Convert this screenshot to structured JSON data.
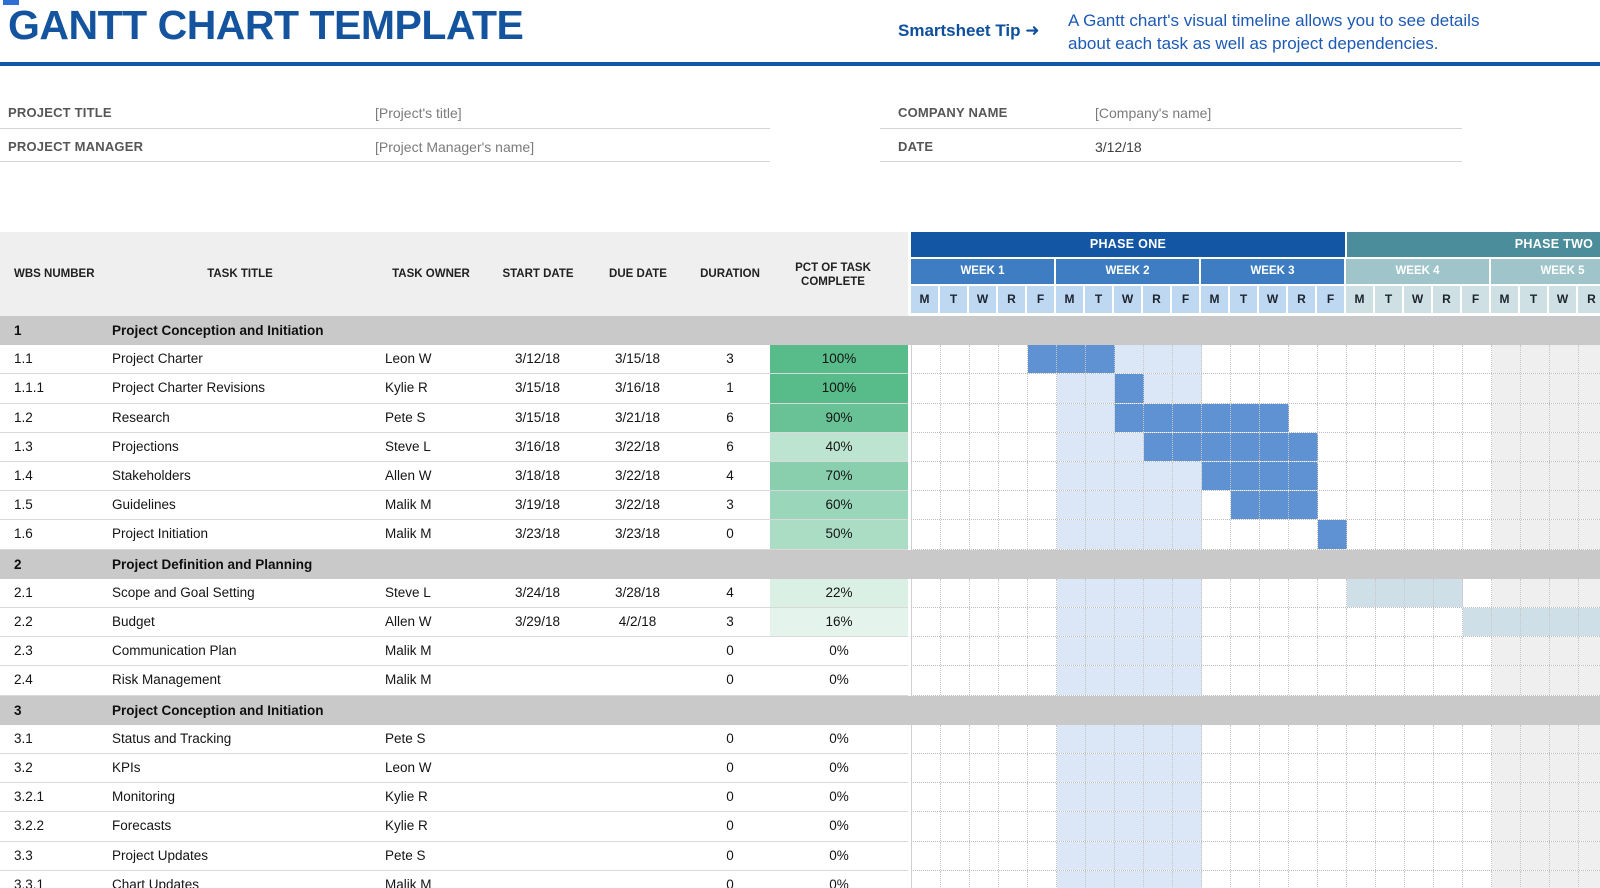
{
  "header": {
    "title": "GANTT CHART TEMPLATE",
    "tip_label": "Smartsheet Tip",
    "tip_arrow": "➜",
    "tip_line1": "A Gantt chart's visual timeline allows you to see details",
    "tip_line2": "about each task as well as project dependencies."
  },
  "project_info": {
    "left": [
      {
        "label": "PROJECT TITLE",
        "value": "[Project's title]"
      },
      {
        "label": "PROJECT MANAGER",
        "value": "[Project Manager's name]"
      }
    ],
    "right": [
      {
        "label": "COMPANY NAME",
        "value": "[Company's name]"
      },
      {
        "label": "DATE",
        "value": "3/12/18"
      }
    ]
  },
  "table": {
    "columns": [
      "WBS NUMBER",
      "TASK TITLE",
      "TASK OWNER",
      "START DATE",
      "DUE DATE",
      "DURATION",
      "PCT OF TASK COMPLETE"
    ]
  },
  "timeline": {
    "phases": [
      {
        "label": "PHASE ONE",
        "weeks": [
          "WEEK 1",
          "WEEK 2",
          "WEEK 3"
        ],
        "theme": "blue"
      },
      {
        "label": "PHASE TWO",
        "weeks": [
          "WEEK 4",
          "WEEK 5"
        ],
        "theme": "teal"
      }
    ],
    "day_letters": [
      "M",
      "T",
      "W",
      "R",
      "F"
    ]
  },
  "rows": [
    {
      "type": "section",
      "wbs": "1",
      "title": "Project Conception and Initiation"
    },
    {
      "type": "task",
      "wbs": "1.1",
      "title": "Project Charter",
      "owner": "Leon W",
      "start": "3/12/18",
      "due": "3/15/18",
      "duration": "3",
      "pct": 100,
      "bar": {
        "style": "solid",
        "from": 4,
        "to": 6
      }
    },
    {
      "type": "task",
      "wbs": "1.1.1",
      "title": "Project Charter Revisions",
      "owner": "Kylie R",
      "start": "3/15/18",
      "due": "3/16/18",
      "duration": "1",
      "pct": 100,
      "bar": {
        "style": "solid",
        "from": 7,
        "to": 7
      }
    },
    {
      "type": "task",
      "wbs": "1.2",
      "title": "Research",
      "owner": "Pete S",
      "start": "3/15/18",
      "due": "3/21/18",
      "duration": "6",
      "pct": 90,
      "bar": {
        "style": "solid",
        "from": 7,
        "to": 12
      }
    },
    {
      "type": "task",
      "wbs": "1.3",
      "title": "Projections",
      "owner": "Steve L",
      "start": "3/16/18",
      "due": "3/22/18",
      "duration": "6",
      "pct": 40,
      "bar": {
        "style": "solid",
        "from": 8,
        "to": 13
      }
    },
    {
      "type": "task",
      "wbs": "1.4",
      "title": "Stakeholders",
      "owner": "Allen W",
      "start": "3/18/18",
      "due": "3/22/18",
      "duration": "4",
      "pct": 70,
      "bar": {
        "style": "solid",
        "from": 10,
        "to": 13
      }
    },
    {
      "type": "task",
      "wbs": "1.5",
      "title": "Guidelines",
      "owner": "Malik M",
      "start": "3/19/18",
      "due": "3/22/18",
      "duration": "3",
      "pct": 60,
      "bar": {
        "style": "solid",
        "from": 11,
        "to": 13
      }
    },
    {
      "type": "task",
      "wbs": "1.6",
      "title": "Project Initiation",
      "owner": "Malik M",
      "start": "3/23/18",
      "due": "3/23/18",
      "duration": "0",
      "pct": 50,
      "bar": {
        "style": "solid",
        "from": 14,
        "to": 14
      }
    },
    {
      "type": "section",
      "wbs": "2",
      "title": "Project Definition and Planning"
    },
    {
      "type": "task",
      "wbs": "2.1",
      "title": "Scope and Goal Setting",
      "owner": "Steve L",
      "start": "3/24/18",
      "due": "3/28/18",
      "duration": "4",
      "pct": 22,
      "bar": {
        "style": "teal",
        "from": 15,
        "to": 18
      }
    },
    {
      "type": "task",
      "wbs": "2.2",
      "title": "Budget",
      "owner": "Allen W",
      "start": "3/29/18",
      "due": "4/2/18",
      "duration": "3",
      "pct": 16,
      "bar": {
        "style": "teal",
        "from": 19,
        "to": 23
      }
    },
    {
      "type": "task",
      "wbs": "2.3",
      "title": "Communication Plan",
      "owner": "Malik M",
      "start": "",
      "due": "",
      "duration": "0",
      "pct": 0
    },
    {
      "type": "task",
      "wbs": "2.4",
      "title": "Risk Management",
      "owner": "Malik M",
      "start": "",
      "due": "",
      "duration": "0",
      "pct": 0
    },
    {
      "type": "section",
      "wbs": "3",
      "title": "Project Conception and Initiation"
    },
    {
      "type": "task",
      "wbs": "3.1",
      "title": "Status and Tracking",
      "owner": "Pete S",
      "start": "",
      "due": "",
      "duration": "0",
      "pct": 0
    },
    {
      "type": "task",
      "wbs": "3.2",
      "title": "KPIs",
      "owner": "Leon W",
      "start": "",
      "due": "",
      "duration": "0",
      "pct": 0
    },
    {
      "type": "task",
      "wbs": "3.2.1",
      "title": "Monitoring",
      "owner": "Kylie R",
      "start": "",
      "due": "",
      "duration": "0",
      "pct": 0
    },
    {
      "type": "task",
      "wbs": "3.2.2",
      "title": "Forecasts",
      "owner": "Kylie R",
      "start": "",
      "due": "",
      "duration": "0",
      "pct": 0
    },
    {
      "type": "task",
      "wbs": "3.3",
      "title": "Project Updates",
      "owner": "Pete S",
      "start": "",
      "due": "",
      "duration": "0",
      "pct": 0
    },
    {
      "type": "task",
      "wbs": "3.3.1",
      "title": "Chart Updates",
      "owner": "Malik M",
      "start": "",
      "due": "",
      "duration": "0",
      "pct": 0
    }
  ],
  "gantt": {
    "week2_stripe": {
      "from_day": 5,
      "to_day": 9
    },
    "gray_area_from_day": 20
  },
  "colors": {
    "title_blue": "#14549f",
    "tip_blue": "#1d5ab4",
    "phase_one": "#1356a4",
    "phase_two": "#4b8d9a",
    "week_blue": "#3e7dc2",
    "week_teal": "#9fc5cb",
    "day_blue": "#bed8f1",
    "day_teal": "#cfe0e4",
    "bar_blue": "#5e92d3",
    "bar_teal": "#cfdfe7",
    "stripe_blue": "#dbe7f6",
    "section_gray": "#c9c9c9",
    "header_gray": "#efefef",
    "week5_body_gray": "#efefef",
    "pct_green": "#57bb8a"
  }
}
